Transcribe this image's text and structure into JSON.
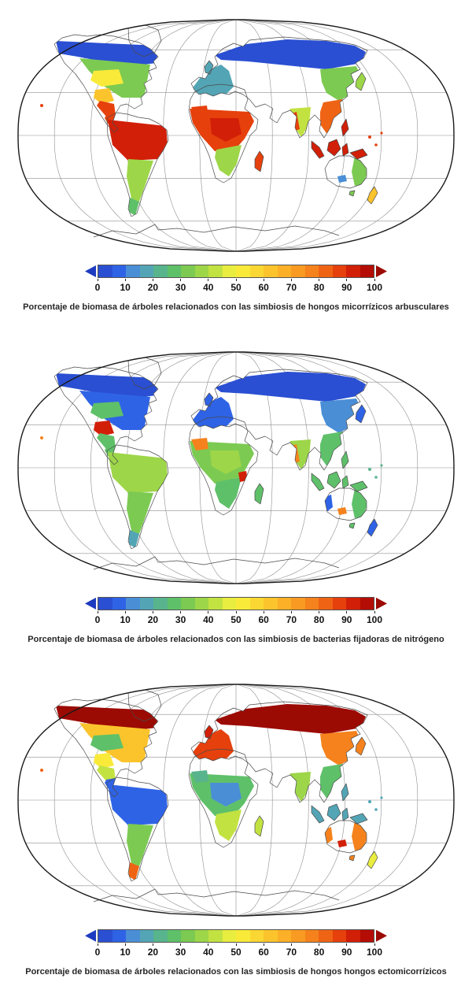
{
  "figures": [
    {
      "id": "arbuscular",
      "caption": "Porcentaje de biomasa de árboles relacionados con las simbiosis de hongos micorrízicos arbusculares",
      "regions": {
        "na-boreal": "#2a4fd2",
        "na-temperate": "#7cca52",
        "na-temperate-accent": "#f9ea3a",
        "na-hotspot": "#fcc42c",
        "mexico-ca": "#e6400d",
        "central-america": "#e6400d",
        "amazon": "#d21f08",
        "sa-south": "#9dd648",
        "patagonia": "#5fc06a",
        "africa-tropical": "#e6400d",
        "africa-congo": "#d21f08",
        "africa-west": "#e6400d",
        "africa-south": "#9dd648",
        "europe": "#53a5b5",
        "eurasia-boreal": "#2a4fd2",
        "east-asia": "#7cca52",
        "china-south": "#ef6414",
        "india": "#c2e242",
        "india-accent": "#e6400d",
        "uk": "#53a5b5",
        "japan": "#9dd648",
        "madagascar": "#e6400d",
        "se-islands": "#d21f08",
        "australia-east": "#7cca52",
        "australia-accent": "#4a8ed6",
        "nz": "#fcc42c",
        "hawaii": "#e6400d",
        "pacific-dots": "#e6400d"
      }
    },
    {
      "id": "nitrogen",
      "caption": "Porcentaje de biomasa de árboles relacionados con las simbiosis de bacterias fijadoras de nitrógeno",
      "regions": {
        "na-boreal": "#2a4fd2",
        "na-temperate": "#2f63e6",
        "na-temperate-accent": "#5fc06a",
        "na-hotspot": "#d21f08",
        "mexico-ca": "#5fc06a",
        "central-america": "#5fc06a",
        "amazon": "#9dd648",
        "sa-south": "#7cca52",
        "patagonia": "#53a5b5",
        "africa-tropical": "#7cca52",
        "africa-congo": "#9dd648",
        "africa-west": "#f5821c",
        "africa-south": "#5fc06a",
        "africa-accent": "#d21f08",
        "europe": "#2f63e6",
        "eurasia-boreal": "#2a4fd2",
        "east-asia": "#4a8ed6",
        "china-south": "#5fc06a",
        "india": "#9dd648",
        "india-accent": "#f5821c",
        "uk": "#2f63e6",
        "japan": "#2f63e6",
        "madagascar": "#5fc06a",
        "se-islands": "#5fc06a",
        "australia-east": "#5fc06a",
        "australia-west": "#2f63e6",
        "australia-accent": "#f5821c",
        "nz": "#2f63e6",
        "hawaii": "#f5821c",
        "pacific-dots": "#58b48c"
      }
    },
    {
      "id": "ectomycorrhizal",
      "caption": "Porcentaje de biomasa de árboles relacionados con las simbiosis de hongos hongos ectomicorrízicos",
      "regions": {
        "na-boreal": "#9c0a04",
        "na-temperate": "#fcc42c",
        "na-temperate-accent": "#5fc06a",
        "na-hotspot": "#f9ea3a",
        "mexico-ca": "#c2e242",
        "central-america": "#2f63e6",
        "amazon": "#2f63e6",
        "sa-south": "#7cca52",
        "patagonia": "#ef6414",
        "africa-tropical": "#5fc06a",
        "africa-congo": "#4a8ed6",
        "africa-west": "#58b48c",
        "africa-south": "#c2e242",
        "europe": "#e6400d",
        "eurasia-boreal": "#9c0a04",
        "east-asia": "#f5821c",
        "china-south": "#5fc06a",
        "india": "#9dd648",
        "uk": "#d21f08",
        "japan": "#f5821c",
        "madagascar": "#c2e242",
        "se-islands": "#53a5b5",
        "australia-east": "#f5821c",
        "australia-west": "#f5821c",
        "australia-accent": "#d21f08",
        "nz": "#e9ed40",
        "hawaii": "#ef6414",
        "pacific-dots": "#53a5b5"
      }
    }
  ],
  "colorbar": {
    "min": 0,
    "max": 100,
    "tick_labels": [
      "0",
      "10",
      "20",
      "30",
      "40",
      "50",
      "60",
      "70",
      "80",
      "90",
      "100"
    ],
    "segment_colors": [
      "#2a4fd2",
      "#2f63e6",
      "#4a8ed6",
      "#53a5b5",
      "#58b48c",
      "#5fc06a",
      "#7cca52",
      "#9dd648",
      "#c2e242",
      "#e9ed40",
      "#f9ea3a",
      "#fbd733",
      "#fcc42c",
      "#fbb027",
      "#f99a22",
      "#f5821c",
      "#ef6414",
      "#e6400d",
      "#d21f08",
      "#b30d05"
    ],
    "left_arrow_color": "#1e3cc0",
    "right_arrow_color": "#9c0a04"
  },
  "map_style": {
    "ocean": "#ffffff",
    "land": "#ffffff",
    "coast": "#4a4a4a",
    "graticule": "#8f8f8f",
    "frame": "#1a1a1a"
  }
}
